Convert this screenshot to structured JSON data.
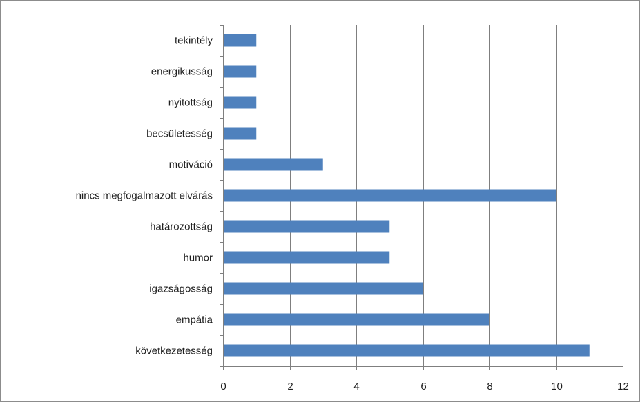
{
  "chart_data": {
    "type": "bar",
    "orientation": "horizontal",
    "categories": [
      "következetesség",
      "empátia",
      "igazságosság",
      "humor",
      "határozottság",
      "nincs megfogalmazott elvárás",
      "motiváció",
      "becsületesség",
      "nyitottság",
      "energikusság",
      "tekintély"
    ],
    "values": [
      11,
      8,
      6,
      5,
      5,
      10,
      3,
      1,
      1,
      1,
      1
    ],
    "xlim": [
      0,
      12
    ],
    "xticks": [
      0,
      2,
      4,
      6,
      8,
      10,
      12
    ],
    "title": "",
    "xlabel": "",
    "ylabel": "",
    "grid": "vertical",
    "legend": "none",
    "bar_color": "#4f81bd",
    "grid_color": "#7f7f7f"
  }
}
